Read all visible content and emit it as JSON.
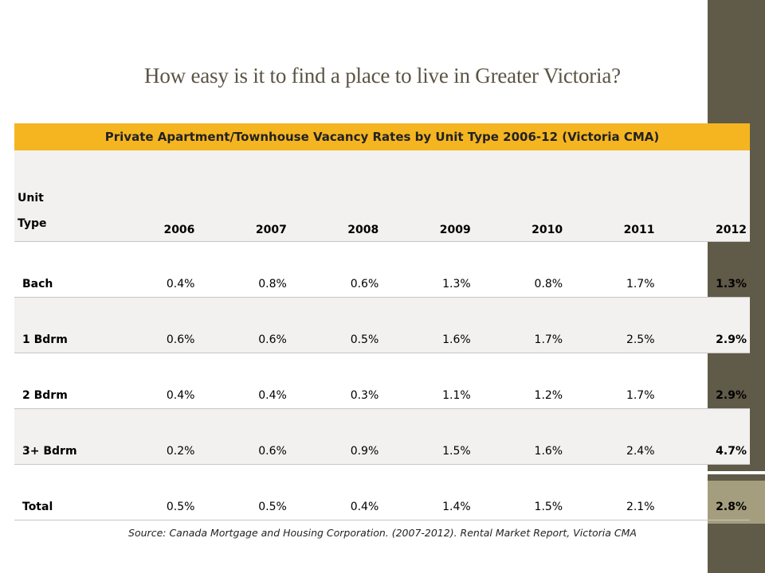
{
  "slide": {
    "title": "How easy is it to find a place to live in Greater Victoria?",
    "source": "Source: Canada Mortgage and Housing Corporation. (2007-2012). Rental Market Report, Victoria CMA"
  },
  "table": {
    "caption": "Private Apartment/Townhouse Vacancy Rates by Unit Type 2006-12 (Victoria CMA)",
    "unit_header_line1": "Unit",
    "unit_header_line2": "Type",
    "years": [
      "2006",
      "2007",
      "2008",
      "2009",
      "2010",
      "2011",
      "2012"
    ],
    "rows": [
      {
        "unit": "Bach",
        "values": [
          "0.4%",
          "0.8%",
          "0.6%",
          "1.3%",
          "0.8%",
          "1.7%",
          "1.3%"
        ]
      },
      {
        "unit": "1 Bdrm",
        "values": [
          "0.6%",
          "0.6%",
          "0.5%",
          "1.6%",
          "1.7%",
          "2.5%",
          "2.9%"
        ]
      },
      {
        "unit": "2 Bdrm",
        "values": [
          "0.4%",
          "0.4%",
          "0.3%",
          "1.1%",
          "1.2%",
          "1.7%",
          "2.9%"
        ]
      },
      {
        "unit": "3+ Bdrm",
        "values": [
          "0.2%",
          "0.6%",
          "0.9%",
          "1.5%",
          "1.6%",
          "2.4%",
          "4.7%"
        ]
      },
      {
        "unit": "Total",
        "values": [
          "0.5%",
          "0.5%",
          "0.4%",
          "1.4%",
          "1.5%",
          "2.1%",
          "2.8%"
        ]
      }
    ]
  },
  "colors": {
    "header_fill": "#f4b521",
    "band_fill": "#f3f1ef",
    "side_band": "#605a48",
    "side_accent": "#a59e7e",
    "title_text": "#5b5444"
  }
}
